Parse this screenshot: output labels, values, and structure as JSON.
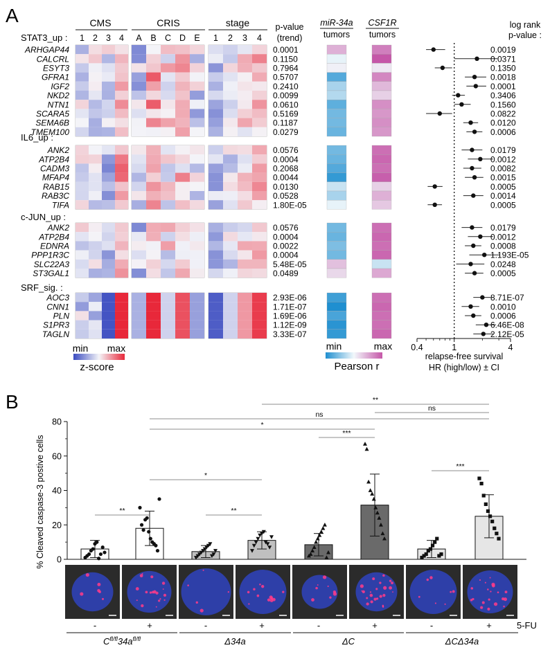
{
  "panel_a": {
    "label": "A",
    "heatmap_headers": {
      "cms": "CMS",
      "cris": "CRIS",
      "stage": "stage"
    },
    "subheaders": {
      "cms": [
        "1",
        "2",
        "3",
        "4"
      ],
      "cris": [
        "A",
        "B",
        "C",
        "D",
        "E"
      ],
      "stage": [
        "1",
        "2",
        "3",
        "4"
      ]
    },
    "pvalue_header": [
      "p-value",
      "(trend)"
    ],
    "mir_header": [
      "miR-34a",
      "tumors"
    ],
    "csf1r_header": [
      "CSF1R",
      "tumors"
    ],
    "logrank_header": [
      "log rank",
      "p-value :"
    ],
    "groups": [
      {
        "name": "STAT3_up :",
        "genes": [
          {
            "gene": "ARHGAP44",
            "p": "0.0001",
            "mir": 0.45,
            "csf": 0.75,
            "hr": 0.6,
            "lo": 0.5,
            "hi": 0.8,
            "lr": "0.0019"
          },
          {
            "gene": "CALCRL",
            "p": "0.1150",
            "mir": -0.05,
            "csf": 1.0,
            "hr": 1.75,
            "lo": 1.0,
            "hi": 2.9,
            "lr": "0.0371"
          },
          {
            "gene": "ESYT3",
            "p": "0.7964",
            "mir": 0.05,
            "csf": 0.1,
            "hr": 0.75,
            "lo": 0.62,
            "hi": 0.95,
            "lr": "0.1350"
          },
          {
            "gene": "GFRA1",
            "p": "0.5707",
            "mir": -0.75,
            "csf": 0.7,
            "hr": 1.65,
            "lo": 1.3,
            "hi": 2.2,
            "lr": "0.0018"
          },
          {
            "gene": "IGF2",
            "p": "0.2410",
            "mir": -0.35,
            "csf": 0.4,
            "hr": 1.7,
            "lo": 1.35,
            "hi": 2.2,
            "lr": "0.0001"
          },
          {
            "gene": "NKD2",
            "p": "0.0099",
            "mir": -0.3,
            "csf": 0.25,
            "hr": 1.1,
            "lo": 0.95,
            "hi": 1.3,
            "lr": "0.3406"
          },
          {
            "gene": "NTN1",
            "p": "0.0610",
            "mir": -0.7,
            "csf": 0.65,
            "hr": 1.2,
            "lo": 1.0,
            "hi": 1.5,
            "lr": "0.1560"
          },
          {
            "gene": "SCARA5",
            "p": "0.5169",
            "mir": -0.6,
            "csf": 0.6,
            "hr": 0.7,
            "lo": 0.5,
            "hi": 0.95,
            "lr": "0.0822"
          },
          {
            "gene": "SEMA6B",
            "p": "0.1187",
            "mir": -0.6,
            "csf": 0.65,
            "hr": 1.5,
            "lo": 1.25,
            "hi": 1.8,
            "lr": "0.0120"
          },
          {
            "gene": "TMEM100",
            "p": "0.0279",
            "mir": -0.65,
            "csf": 0.6,
            "hr": 1.65,
            "lo": 1.35,
            "hi": 2.0,
            "lr": "0.0006"
          }
        ]
      },
      {
        "name": "IL6_up :",
        "genes": [
          {
            "gene": "ANK2",
            "p": "0.0576",
            "mir": -0.6,
            "csf": 0.85,
            "hr": 1.55,
            "lo": 1.2,
            "hi": 2.0,
            "lr": "0.0179"
          },
          {
            "gene": "ATP2B4",
            "p": "0.0004",
            "mir": -0.65,
            "csf": 0.9,
            "hr": 1.9,
            "lo": 1.4,
            "hi": 2.6,
            "lr": "0.0012"
          },
          {
            "gene": "CADM3",
            "p": "0.2068",
            "mir": -0.75,
            "csf": 0.85,
            "hr": 1.55,
            "lo": 1.25,
            "hi": 1.95,
            "lr": "0.0082"
          },
          {
            "gene": "MFAP4",
            "p": "0.0044",
            "mir": -0.9,
            "csf": 0.95,
            "hr": 1.65,
            "lo": 1.3,
            "hi": 2.05,
            "lr": "0.0015"
          },
          {
            "gene": "RAB15",
            "p": "0.0130",
            "mir": -0.2,
            "csf": 0.25,
            "hr": 0.62,
            "lo": 0.52,
            "hi": 0.75,
            "lr": "0.0005"
          },
          {
            "gene": "RAB3C",
            "p": "0.0528",
            "mir": -0.35,
            "csf": 0.45,
            "hr": 1.6,
            "lo": 1.25,
            "hi": 2.05,
            "lr": "0.0014"
          },
          {
            "gene": "TIFA",
            "p": "1.80E-05",
            "mir": -0.05,
            "csf": 0.3,
            "hr": 0.62,
            "lo": 0.52,
            "hi": 0.74,
            "lr": "0.0005"
          }
        ]
      },
      {
        "name": "c-JUN_up :",
        "genes": [
          {
            "gene": "ANK2",
            "p": "0.0576",
            "mir": -0.6,
            "csf": 0.85,
            "hr": 1.55,
            "lo": 1.2,
            "hi": 2.0,
            "lr": "0.0179"
          },
          {
            "gene": "ATP2B4",
            "p": "0.0004",
            "mir": -0.65,
            "csf": 0.9,
            "hr": 1.9,
            "lo": 1.4,
            "hi": 2.6,
            "lr": "0.0012"
          },
          {
            "gene": "EDNRA",
            "p": "0.0022",
            "mir": -0.55,
            "csf": 0.85,
            "hr": 1.6,
            "lo": 1.3,
            "hi": 1.95,
            "lr": "0.0008"
          },
          {
            "gene": "PPP1R3C",
            "p": "0.0004",
            "mir": -0.6,
            "csf": 0.9,
            "hr": 2.1,
            "lo": 1.45,
            "hi": 3.05,
            "lr": "1.193E-05"
          },
          {
            "gene": "SLC22A3",
            "p": "5.48E-05",
            "mir": 0.35,
            "csf": -0.2,
            "hr": 1.5,
            "lo": 1.05,
            "hi": 2.1,
            "lr": "0.0248"
          },
          {
            "gene": "ST3GAL1",
            "p": "0.0489",
            "mir": 0.2,
            "csf": 0.5,
            "hr": 1.65,
            "lo": 1.3,
            "hi": 2.05,
            "lr": "0.0005"
          }
        ]
      },
      {
        "name": "SRF_sig. :",
        "genes": [
          {
            "gene": "AOC3",
            "p": "2.93E-06",
            "mir": -0.85,
            "csf": 0.85,
            "hr": 2.0,
            "lo": 1.6,
            "hi": 2.5,
            "lr": "8.71E-07"
          },
          {
            "gene": "CNN1",
            "p": "1.71E-07",
            "mir": -1.0,
            "csf": 0.9,
            "hr": 1.5,
            "lo": 1.2,
            "hi": 1.85,
            "lr": "0.0010"
          },
          {
            "gene": "PLN",
            "p": "1.69E-06",
            "mir": -0.8,
            "csf": 0.85,
            "hr": 1.6,
            "lo": 1.3,
            "hi": 1.95,
            "lr": "0.0006"
          },
          {
            "gene": "S1PR3",
            "p": "1.12E-09",
            "mir": -0.95,
            "csf": 0.85,
            "hr": 2.2,
            "lo": 1.7,
            "hi": 2.8,
            "lr": "6.46E-08"
          },
          {
            "gene": "TAGLN",
            "p": "3.33E-07",
            "mir": -0.9,
            "csf": 0.9,
            "hr": 2.05,
            "lo": 1.6,
            "hi": 2.6,
            "lr": "2.12E-05"
          }
        ]
      }
    ],
    "zscore_legend": {
      "min": "min",
      "max": "max",
      "title": "z-score"
    },
    "pearson_legend": {
      "min": "min",
      "max": "max",
      "title": "Pearson r"
    },
    "forest_axis": {
      "ticks": [
        "0.4",
        "1",
        "4"
      ],
      "tick_values": [
        0.4,
        1,
        4
      ],
      "label1": "relapse-free survival",
      "label2": "HR (high/low) ± CI"
    },
    "colors": {
      "blue": "#3b4cc0",
      "red": "#e8283a",
      "cyan": "#1f8fd0",
      "magenta": "#c557a8"
    }
  },
  "panel_b": {
    "label": "B",
    "ylabel": "% Cleaved caspase-3 postive cells",
    "chart_data": {
      "type": "bar",
      "title": "",
      "ylabel": "% Cleaved caspase-3 postive cells",
      "ylim": [
        0,
        80
      ],
      "yticks": [
        0,
        20,
        40,
        60,
        80
      ],
      "categories": [
        "Cfl/fl34afl/fl -",
        "Cfl/fl34afl/fl +",
        "Δ34a -",
        "Δ34a +",
        "ΔC -",
        "ΔC +",
        "ΔCΔ34a -",
        "ΔCΔ34a +"
      ],
      "means": [
        6,
        18,
        4.5,
        11,
        8.5,
        31.5,
        6,
        25
      ],
      "sd": [
        5,
        10,
        3.5,
        5,
        6.5,
        18,
        5,
        12.5
      ],
      "markers": [
        "circle",
        "circle",
        "triangle-down",
        "triangle-down",
        "triangle",
        "triangle",
        "square",
        "square"
      ],
      "fills": [
        "#ffffff",
        "#ffffff",
        "#c0c0c0",
        "#c0c0c0",
        "#6a6a6a",
        "#6a6a6a",
        "#e6e6e6",
        "#e6e6e6"
      ],
      "points": [
        [
          1,
          2,
          3,
          5,
          6,
          9,
          10,
          0.5,
          3,
          7,
          4
        ],
        [
          30,
          20,
          17,
          23,
          24,
          16,
          12,
          10,
          9,
          8,
          5,
          35
        ],
        [
          1,
          2,
          3,
          4,
          5,
          6,
          7,
          8,
          9,
          2,
          3,
          5
        ],
        [
          5,
          8,
          10,
          12,
          14,
          15,
          16,
          10,
          9,
          7,
          13
        ],
        [
          2,
          3,
          5,
          7,
          10,
          12,
          14,
          16,
          18,
          20,
          1,
          4
        ],
        [
          67,
          64,
          45,
          40,
          38,
          35,
          30,
          27,
          24,
          20,
          15,
          12
        ],
        [
          1,
          2,
          3,
          5,
          6,
          8,
          10,
          12,
          2,
          3
        ],
        [
          47,
          44,
          37,
          32,
          28,
          25,
          22,
          18,
          15,
          12
        ]
      ],
      "significance": [
        {
          "from": 0,
          "to": 1,
          "label": "**",
          "y": 61
        },
        {
          "from": 1,
          "to": 3,
          "label": "*",
          "y": 46
        },
        {
          "from": 2,
          "to": 3,
          "label": "**",
          "y": 73
        },
        {
          "from": 4,
          "to": 5,
          "label": "***",
          "y": 150
        },
        {
          "from": 6,
          "to": 7,
          "label": "***",
          "y": 100
        },
        {
          "from": 1,
          "to": 5,
          "label": "*",
          "y": 230
        },
        {
          "from": 1,
          "to": 7,
          "label": "ns",
          "y": 255
        },
        {
          "from": 5,
          "to": 7,
          "label": "ns",
          "y": 224
        },
        {
          "from": 3,
          "to": 7,
          "label": "**",
          "y": 290
        }
      ]
    },
    "signs": [
      "-",
      "+",
      "-",
      "+",
      "-",
      "+",
      "-",
      "+"
    ],
    "treatment_label": "5-FU",
    "groups": [
      {
        "base": "C",
        "sup": "fl/fl",
        "base2": "34a",
        "sup2": "fl/fl"
      },
      {
        "base": "Δ34a"
      },
      {
        "base": "ΔC"
      },
      {
        "base": "ΔCΔ34a"
      }
    ]
  }
}
